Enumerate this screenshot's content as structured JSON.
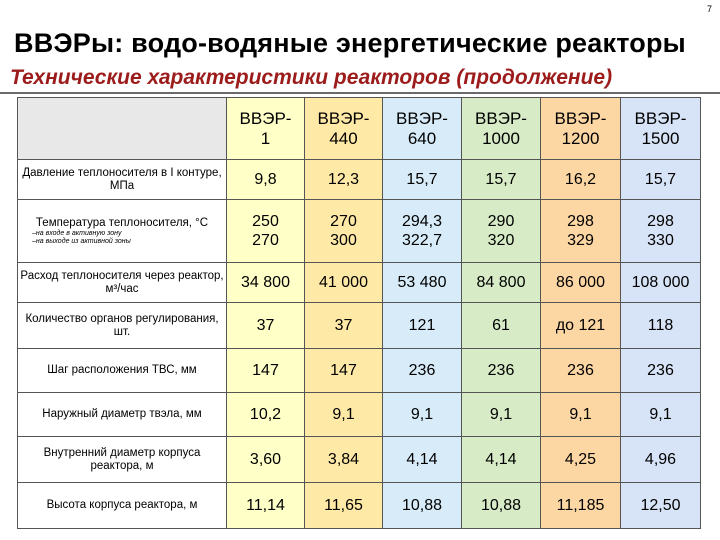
{
  "page_number": "7",
  "title": "ВВЭРы: водо-водяные энергетические реакторы",
  "subtitle": "Технические характеристики реакторов (продолжение)",
  "columns": [
    {
      "line1": "ВВЭР-",
      "line2": "1"
    },
    {
      "line1": "ВВЭР-",
      "line2": "440"
    },
    {
      "line1": "ВВЭР-",
      "line2": "640"
    },
    {
      "line1": "ВВЭР-",
      "line2": "1000"
    },
    {
      "line1": "ВВЭР-",
      "line2": "1200"
    },
    {
      "line1": "ВВЭР-",
      "line2": "1500"
    }
  ],
  "rows": [
    {
      "label": "Давление теплоносителя в I контуре, МПа",
      "values": [
        "9,8",
        "12,3",
        "15,7",
        "15,7",
        "16,2",
        "15,7"
      ]
    },
    {
      "label": "Температура теплоносителя, °С",
      "sublabels": [
        "–на входе в активную зону",
        "–на выходе из активной зоны"
      ],
      "values": [
        [
          "250",
          "270"
        ],
        [
          "270",
          "300"
        ],
        [
          "294,3",
          "322,7"
        ],
        [
          "290",
          "320"
        ],
        [
          "298",
          "329"
        ],
        [
          "298",
          "330"
        ]
      ]
    },
    {
      "label": "Расход теплоносителя через реактор, м³/час",
      "values": [
        "34 800",
        "41 000",
        "53 480",
        "84 800",
        "86 000",
        "108 000"
      ]
    },
    {
      "label": "Количество органов регулирования, шт.",
      "values": [
        "37",
        "37",
        "121",
        "61",
        "до 121",
        "118"
      ]
    },
    {
      "label": "Шаг расположения ТВС, мм",
      "values": [
        "147",
        "147",
        "236",
        "236",
        "236",
        "236"
      ]
    },
    {
      "label": "Наружный диаметр твэла, мм",
      "values": [
        "10,2",
        "9,1",
        "9,1",
        "9,1",
        "9,1",
        "9,1"
      ]
    },
    {
      "label": "Внутренний диаметр корпуса реактора, м",
      "values": [
        "3,60",
        "3,84",
        "4,14",
        "4,14",
        "4,25",
        "4,96"
      ]
    },
    {
      "label": "Высота корпуса реактора, м",
      "values": [
        "11,14",
        "11,65",
        "10,88",
        "10,88",
        "11,185",
        "12,50"
      ]
    }
  ],
  "column_colors": [
    "#ffffc8",
    "#ffe9a6",
    "#d7ecf8",
    "#d6ebc6",
    "#fcd7a4",
    "#d7e3f6"
  ]
}
